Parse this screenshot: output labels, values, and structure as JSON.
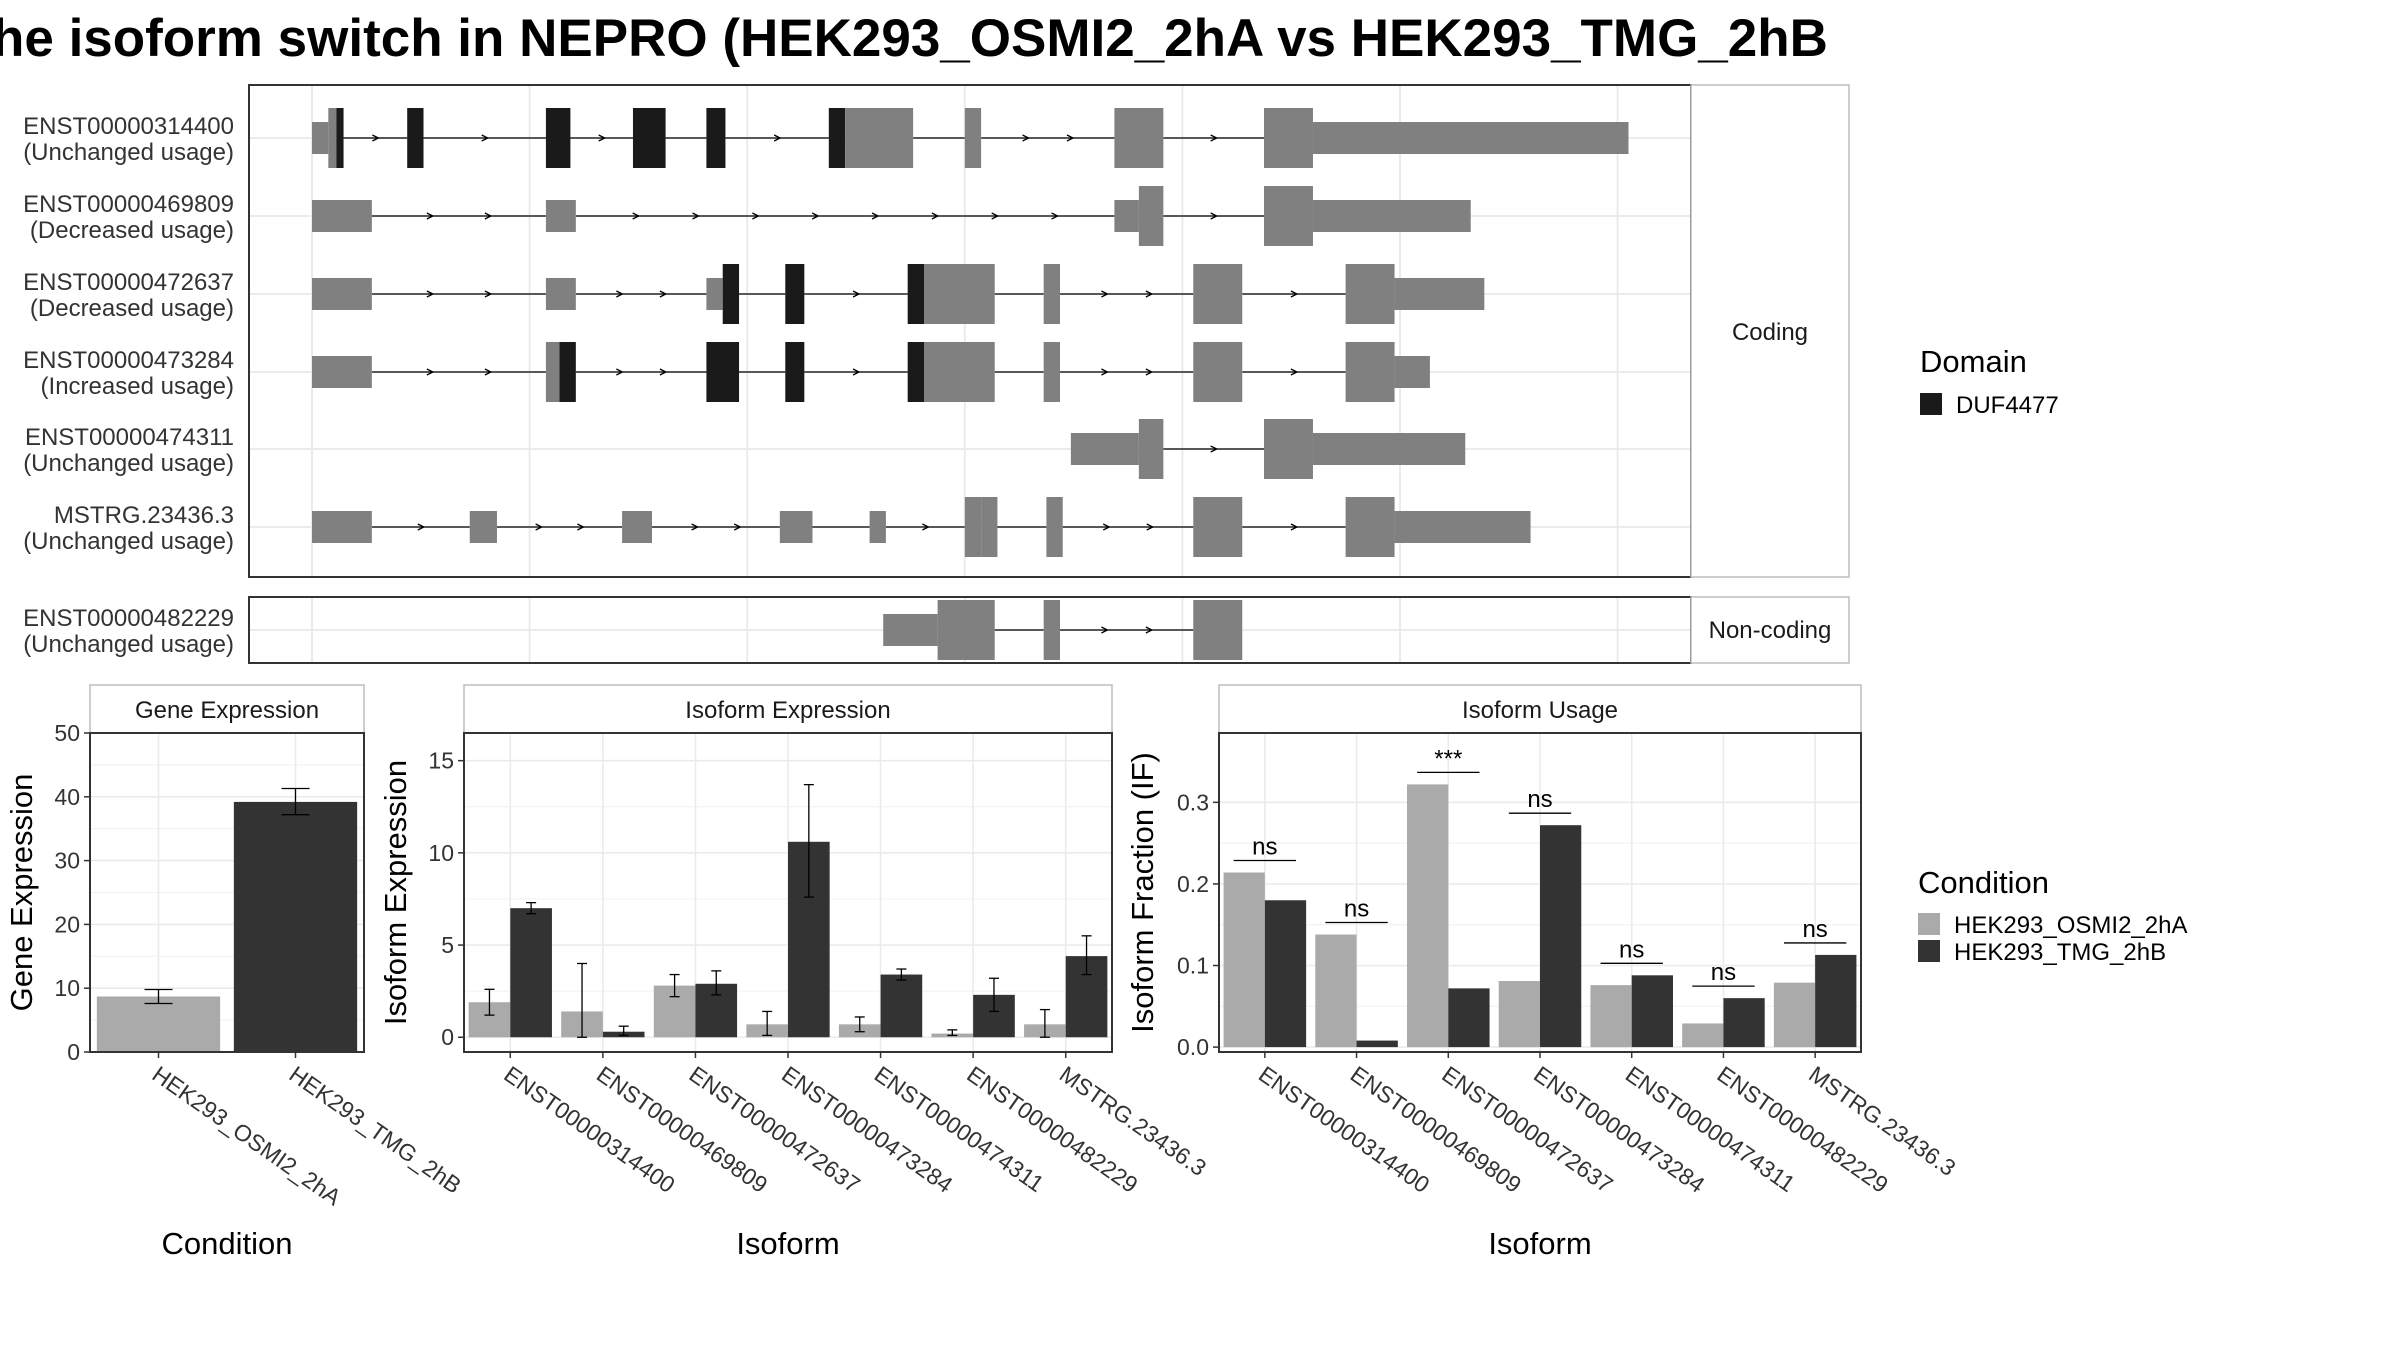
{
  "title": "he isoform switch in NEPRO (HEK293_OSMI2_2hA vs HEK293_TMG_2hB",
  "colors": {
    "domain": "#1a1a1a",
    "exon": "#808080",
    "cond1": "#aaaaaa",
    "cond2": "#333333",
    "panel_border": "#333333",
    "strip_border": "#bdbdbd",
    "grid": "#ebebeb"
  },
  "chart_data": [
    {
      "type": "gene-structure",
      "facets": [
        "Coding",
        "Non-coding"
      ],
      "legend": {
        "title": "Domain",
        "entries": [
          "DUF4477"
        ]
      },
      "transcripts": [
        {
          "id": "ENST00000314400",
          "status": "(Unchanged usage)",
          "facet": "Coding",
          "strand": "+",
          "exons": [
            {
              "s": 0,
              "e": 3,
              "t": "utr"
            },
            {
              "s": 3,
              "e": 4.5,
              "t": "cds"
            },
            {
              "s": 4.5,
              "e": 5.8,
              "t": "dom"
            },
            {
              "s": 17.5,
              "e": 20.5,
              "t": "dom"
            },
            {
              "s": 43,
              "e": 47.5,
              "t": "dom"
            },
            {
              "s": 59,
              "e": 65,
              "t": "dom"
            },
            {
              "s": 72.5,
              "e": 76,
              "t": "dom"
            },
            {
              "s": 95,
              "e": 98,
              "t": "dom"
            },
            {
              "s": 98,
              "e": 110.5,
              "t": "cds"
            },
            {
              "s": 120,
              "e": 123,
              "t": "cds"
            },
            {
              "s": 147.5,
              "e": 156.5,
              "t": "cds"
            },
            {
              "s": 175,
              "e": 184,
              "t": "cds"
            },
            {
              "s": 184,
              "e": 242,
              "t": "utr"
            }
          ]
        },
        {
          "id": "ENST00000469809",
          "status": "(Decreased usage)",
          "facet": "Coding",
          "strand": "+",
          "exons": [
            {
              "s": 0,
              "e": 11,
              "t": "utr"
            },
            {
              "s": 43,
              "e": 48.5,
              "t": "utr"
            },
            {
              "s": 147.5,
              "e": 152,
              "t": "utr"
            },
            {
              "s": 152,
              "e": 156.5,
              "t": "cds"
            },
            {
              "s": 175,
              "e": 184,
              "t": "cds"
            },
            {
              "s": 184,
              "e": 213,
              "t": "utr"
            }
          ]
        },
        {
          "id": "ENST00000472637",
          "status": "(Decreased usage)",
          "facet": "Coding",
          "strand": "+",
          "exons": [
            {
              "s": 0,
              "e": 11,
              "t": "utr"
            },
            {
              "s": 43,
              "e": 48.5,
              "t": "utr"
            },
            {
              "s": 72.5,
              "e": 75.5,
              "t": "utr"
            },
            {
              "s": 75.5,
              "e": 78.5,
              "t": "dom"
            },
            {
              "s": 87,
              "e": 90.5,
              "t": "dom"
            },
            {
              "s": 109.5,
              "e": 112.5,
              "t": "dom"
            },
            {
              "s": 112.5,
              "e": 125.5,
              "t": "cds"
            },
            {
              "s": 134.5,
              "e": 137.5,
              "t": "cds"
            },
            {
              "s": 162,
              "e": 171,
              "t": "cds"
            },
            {
              "s": 190,
              "e": 199,
              "t": "cds"
            },
            {
              "s": 199,
              "e": 215.5,
              "t": "utr"
            }
          ]
        },
        {
          "id": "ENST00000473284",
          "status": "(Increased usage)",
          "facet": "Coding",
          "strand": "+",
          "exons": [
            {
              "s": 0,
              "e": 11,
              "t": "utr"
            },
            {
              "s": 43,
              "e": 45.5,
              "t": "cds"
            },
            {
              "s": 45.5,
              "e": 48.5,
              "t": "dom"
            },
            {
              "s": 72.5,
              "e": 78.5,
              "t": "dom"
            },
            {
              "s": 87,
              "e": 90.5,
              "t": "dom"
            },
            {
              "s": 109.5,
              "e": 112.5,
              "t": "dom"
            },
            {
              "s": 112.5,
              "e": 125.5,
              "t": "cds"
            },
            {
              "s": 134.5,
              "e": 137.5,
              "t": "cds"
            },
            {
              "s": 162,
              "e": 171,
              "t": "cds"
            },
            {
              "s": 190,
              "e": 199,
              "t": "cds"
            },
            {
              "s": 199,
              "e": 205.5,
              "t": "utr"
            }
          ]
        },
        {
          "id": "ENST00000474311",
          "status": "(Unchanged usage)",
          "facet": "Coding",
          "strand": "+",
          "exons": [
            {
              "s": 139.5,
              "e": 152,
              "t": "utr"
            },
            {
              "s": 152,
              "e": 156.5,
              "t": "cds"
            },
            {
              "s": 175,
              "e": 184,
              "t": "cds"
            },
            {
              "s": 184,
              "e": 212,
              "t": "utr"
            }
          ]
        },
        {
          "id": "MSTRG.23436.3",
          "status": "(Unchanged usage)",
          "facet": "Coding",
          "strand": "+",
          "exons": [
            {
              "s": 0,
              "e": 11,
              "t": "utr"
            },
            {
              "s": 29,
              "e": 34,
              "t": "utr"
            },
            {
              "s": 57,
              "e": 62.5,
              "t": "utr"
            },
            {
              "s": 86,
              "e": 92,
              "t": "utr"
            },
            {
              "s": 102.5,
              "e": 105.5,
              "t": "utr"
            },
            {
              "s": 120,
              "e": 123,
              "t": "cds"
            },
            {
              "s": 123,
              "e": 126,
              "t": "cds"
            },
            {
              "s": 135,
              "e": 138,
              "t": "cds"
            },
            {
              "s": 162,
              "e": 171,
              "t": "cds"
            },
            {
              "s": 190,
              "e": 199,
              "t": "cds"
            },
            {
              "s": 199,
              "e": 224,
              "t": "utr"
            }
          ]
        },
        {
          "id": "ENST00000482229",
          "status": "(Unchanged usage)",
          "facet": "Non-coding",
          "strand": "+",
          "exons": [
            {
              "s": 105,
              "e": 115,
              "t": "utr"
            },
            {
              "s": 115,
              "e": 125.5,
              "t": "cds"
            },
            {
              "s": 134.5,
              "e": 137.5,
              "t": "cds"
            },
            {
              "s": 162,
              "e": 171,
              "t": "cds"
            }
          ]
        }
      ]
    },
    {
      "type": "bar",
      "title": "Gene Expression",
      "xlabel": "Condition",
      "ylabel": "Gene Expression",
      "categories": [
        "HEK293_OSMI2_2hA",
        "HEK293_TMG_2hB"
      ],
      "values": [
        8.7,
        39.2
      ],
      "errors": [
        [
          7.6,
          9.8
        ],
        [
          37.2,
          41.3
        ]
      ],
      "ylim": [
        0,
        50
      ],
      "yticks": [
        0,
        10,
        20,
        30,
        40,
        50
      ],
      "grid": true
    },
    {
      "type": "bar",
      "title": "Isoform Expression",
      "xlabel": "Isoform",
      "ylabel": "Isoform Expression",
      "categories": [
        "ENST00000314400",
        "ENST00000469809",
        "ENST00000472637",
        "ENST00000473284",
        "ENST00000474311",
        "ENST00000482229",
        "MSTRG.23436.3"
      ],
      "series": [
        {
          "name": "HEK293_OSMI2_2hA",
          "values": [
            1.9,
            1.4,
            2.8,
            0.7,
            0.7,
            0.2,
            0.7
          ],
          "errors": [
            [
              1.2,
              2.6
            ],
            [
              0,
              4.0
            ],
            [
              2.2,
              3.4
            ],
            [
              0.1,
              1.4
            ],
            [
              0.3,
              1.1
            ],
            [
              0.1,
              0.4
            ],
            [
              0,
              1.5
            ]
          ]
        },
        {
          "name": "HEK293_TMG_2hB",
          "values": [
            7.0,
            0.3,
            2.9,
            10.6,
            3.4,
            2.3,
            4.4
          ],
          "errors": [
            [
              6.7,
              7.3
            ],
            [
              0.1,
              0.6
            ],
            [
              2.3,
              3.6
            ],
            [
              7.6,
              13.7
            ],
            [
              3.1,
              3.7
            ],
            [
              1.4,
              3.2
            ],
            [
              3.4,
              5.5
            ]
          ]
        }
      ],
      "ylim": [
        -0.8,
        16.5
      ],
      "yticks": [
        0,
        5,
        10,
        15
      ],
      "grid": true
    },
    {
      "type": "bar",
      "title": "Isoform Usage",
      "xlabel": "Isoform",
      "ylabel": "Isoform Fraction (IF)",
      "categories": [
        "ENST00000314400",
        "ENST00000469809",
        "ENST00000472637",
        "ENST00000473284",
        "ENST00000474311",
        "ENST00000482229",
        "MSTRG.23436.3"
      ],
      "series": [
        {
          "name": "HEK293_OSMI2_2hA",
          "values": [
            0.214,
            0.138,
            0.322,
            0.081,
            0.076,
            0.029,
            0.079
          ]
        },
        {
          "name": "HEK293_TMG_2hB",
          "values": [
            0.18,
            0.008,
            0.072,
            0.272,
            0.088,
            0.06,
            0.113
          ]
        }
      ],
      "significance": [
        "ns",
        "ns",
        "***",
        "ns",
        "ns",
        "ns",
        "ns"
      ],
      "ylim": [
        -0.006,
        0.385
      ],
      "yticks": [
        0.0,
        0.1,
        0.2,
        0.3
      ],
      "ytick_labels": [
        "0.0",
        "0.1",
        "0.2",
        "0.3"
      ],
      "grid": true,
      "legend": {
        "title": "Condition",
        "placement": "right"
      }
    }
  ]
}
